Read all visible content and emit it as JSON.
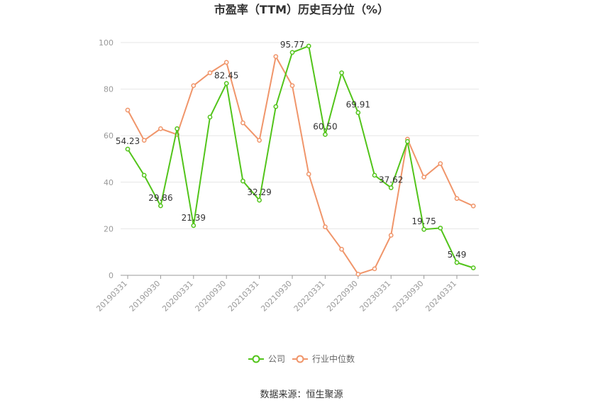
{
  "chart_data": {
    "type": "line",
    "title": "市盈率（TTM）历史百分位（%）",
    "source": "数据来源：恒生聚源",
    "ylim": [
      0,
      100
    ],
    "yticks": [
      0,
      20,
      40,
      60,
      80,
      100
    ],
    "grid": true,
    "legend_position": "bottom",
    "x": [
      "20190331",
      "20190630",
      "20190930",
      "20191231",
      "20200331",
      "20200630",
      "20200930",
      "20201231",
      "20210331",
      "20210630",
      "20210930",
      "20211231",
      "20220331",
      "20220630",
      "20220930",
      "20221231",
      "20230331",
      "20230630",
      "20230930",
      "20231231",
      "20240331",
      "20240630"
    ],
    "x_tick_labels": [
      "20190331",
      "20190930",
      "20200331",
      "20200930",
      "20210331",
      "20210930",
      "20220331",
      "20220930",
      "20230331",
      "20230930",
      "20240331"
    ],
    "series": [
      {
        "name": "公司",
        "color": "#52c41a",
        "values": [
          54.23,
          43,
          29.86,
          63,
          21.39,
          68,
          82.45,
          40.5,
          32.29,
          72.5,
          95.77,
          98.5,
          60.5,
          87,
          69.91,
          43,
          37.62,
          57.5,
          19.75,
          20.3,
          5.49,
          3.2
        ],
        "labels": [
          "54.23",
          null,
          "29.86",
          null,
          "21.39",
          null,
          "82.45",
          null,
          "32.29",
          null,
          "95.77",
          null,
          "60.50",
          null,
          "69.91",
          null,
          "37.62",
          null,
          "19.75",
          null,
          "5.49",
          null
        ]
      },
      {
        "name": "行业中位数",
        "color": "#f0956a",
        "values": [
          71,
          58,
          63,
          60.5,
          81.5,
          87,
          91.5,
          65.5,
          58,
          94,
          81.5,
          43.5,
          20.8,
          11.2,
          0.5,
          2.8,
          17.2,
          58.5,
          42.2,
          48,
          33,
          29.8
        ]
      }
    ]
  }
}
